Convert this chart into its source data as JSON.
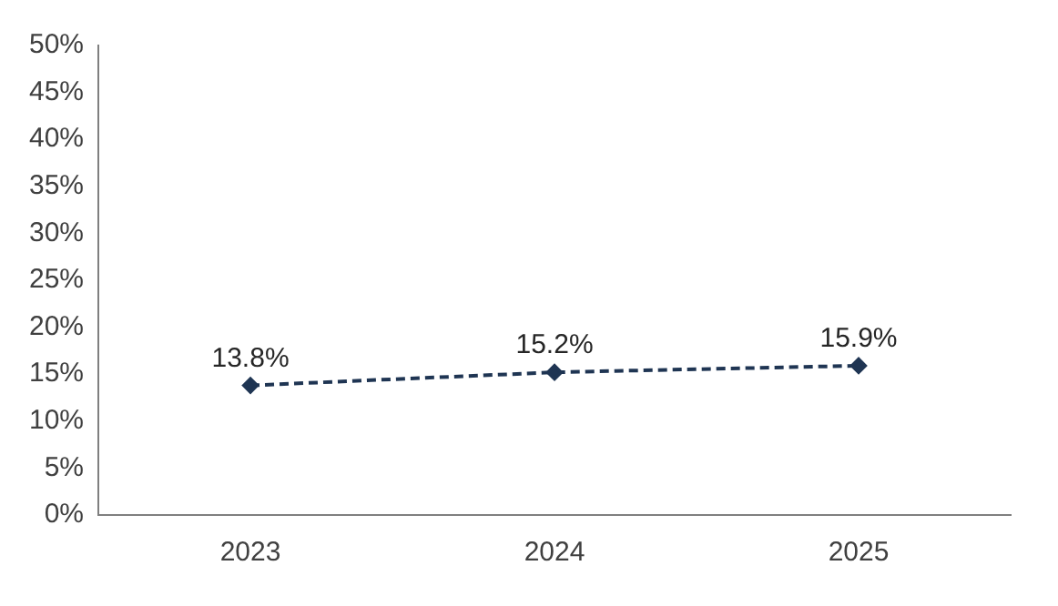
{
  "chart_data": {
    "type": "line",
    "categories": [
      "2023",
      "2024",
      "2025"
    ],
    "series": [
      {
        "color": "#1f3553",
        "values": [
          13.8,
          15.2,
          15.9
        ],
        "value_labels": [
          "13.8%",
          "15.2%",
          "15.9%"
        ]
      }
    ],
    "ylim": [
      0,
      50
    ],
    "yticks": [
      {
        "value": 0,
        "label": "0%"
      },
      {
        "value": 5,
        "label": "5%"
      },
      {
        "value": 10,
        "label": "10%"
      },
      {
        "value": 15,
        "label": "15%"
      },
      {
        "value": 20,
        "label": "20%"
      },
      {
        "value": 25,
        "label": "25%"
      },
      {
        "value": 30,
        "label": "30%"
      },
      {
        "value": 35,
        "label": "35%"
      },
      {
        "value": 40,
        "label": "40%"
      },
      {
        "value": 45,
        "label": "45%"
      },
      {
        "value": 50,
        "label": "50%"
      }
    ],
    "grid": false,
    "legend": false,
    "marker": "diamond",
    "line_style": "dashed"
  }
}
